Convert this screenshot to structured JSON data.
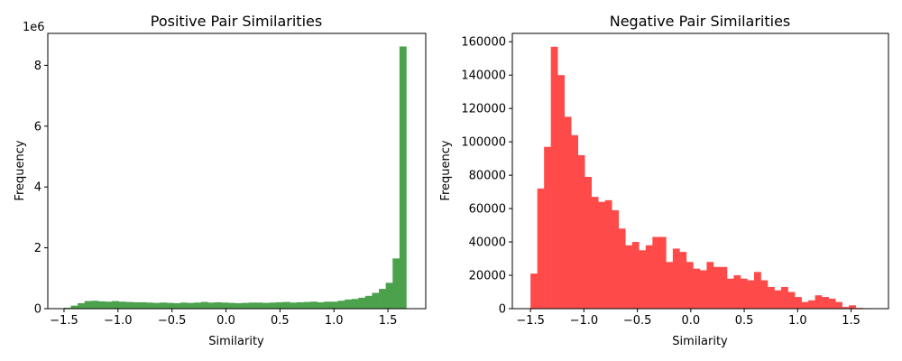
{
  "chart_data": [
    {
      "type": "bar",
      "title": "Positive Pair Similarities",
      "xlabel": "Similarity",
      "ylabel": "Frequency",
      "y_scale_label": "1e6",
      "color": "#4ca24c",
      "xlim": [
        -1.65,
        1.85
      ],
      "ylim": [
        0,
        9.05
      ],
      "x_ticks": [
        -1.5,
        -1.0,
        -0.5,
        0.0,
        0.5,
        1.0,
        1.5
      ],
      "x_tick_labels": [
        "−1.5",
        "−1.0",
        "−0.5",
        "0.0",
        "0.5",
        "1.0",
        "1.5"
      ],
      "y_ticks": [
        0,
        2,
        4,
        6,
        8
      ],
      "y_tick_labels": [
        "0",
        "2",
        "4",
        "6",
        "8"
      ],
      "bin_start": -1.5,
      "bin_width": 0.0634,
      "values": [
        0.03,
        0.1,
        0.18,
        0.25,
        0.26,
        0.24,
        0.23,
        0.25,
        0.23,
        0.22,
        0.21,
        0.21,
        0.2,
        0.19,
        0.2,
        0.19,
        0.18,
        0.2,
        0.19,
        0.2,
        0.22,
        0.2,
        0.21,
        0.2,
        0.19,
        0.18,
        0.19,
        0.2,
        0.2,
        0.19,
        0.2,
        0.21,
        0.22,
        0.2,
        0.21,
        0.22,
        0.23,
        0.21,
        0.23,
        0.23,
        0.26,
        0.3,
        0.32,
        0.36,
        0.42,
        0.52,
        0.65,
        0.85,
        1.65,
        8.62
      ]
    },
    {
      "type": "bar",
      "title": "Negative Pair Similarities",
      "xlabel": "Similarity",
      "ylabel": "Frequency",
      "color": "#ff4a4a",
      "xlim": [
        -1.67,
        1.85
      ],
      "ylim": [
        0,
        165000
      ],
      "x_ticks": [
        -1.5,
        -1.0,
        -0.5,
        0.0,
        0.5,
        1.0,
        1.5
      ],
      "x_tick_labels": [
        "−1.5",
        "−1.0",
        "−0.5",
        "0.0",
        "0.5",
        "1.0",
        "1.5"
      ],
      "y_ticks": [
        0,
        20000,
        40000,
        60000,
        80000,
        100000,
        120000,
        140000,
        160000
      ],
      "y_tick_labels": [
        "0",
        "20000",
        "40000",
        "60000",
        "80000",
        "100000",
        "120000",
        "140000",
        "160000"
      ],
      "bin_start": -1.5,
      "bin_width": 0.0634,
      "values": [
        21000,
        72000,
        97000,
        157000,
        140000,
        115000,
        104000,
        92000,
        79000,
        67000,
        64000,
        65000,
        59000,
        48000,
        38000,
        40000,
        35000,
        38000,
        43000,
        43000,
        28000,
        36000,
        34000,
        28000,
        24000,
        23000,
        28000,
        25000,
        25000,
        18000,
        20000,
        18000,
        17000,
        22000,
        17000,
        13000,
        11000,
        13000,
        10000,
        7000,
        4000,
        5000,
        8000,
        7000,
        6000,
        4000,
        1000,
        2000,
        500,
        300
      ]
    }
  ]
}
